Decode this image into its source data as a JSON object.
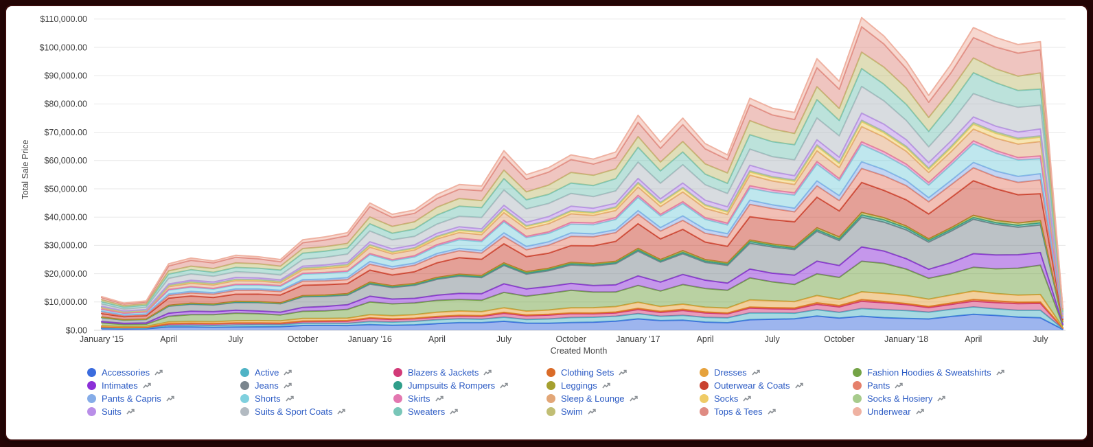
{
  "window": {
    "frame_color": "#250606",
    "card_color": "#ffffff"
  },
  "chart": {
    "y_axis_title": "Total Sale Price",
    "x_axis_title": "Created Month",
    "y_tick_labels": [
      "$0.00",
      "$10,000.00",
      "$20,000.00",
      "$30,000.00",
      "$40,000.00",
      "$50,000.00",
      "$60,000.00",
      "$70,000.00",
      "$80,000.00",
      "$90,000.00",
      "$100,000.00",
      "$110,000.00"
    ],
    "x_ticks": [
      {
        "month": 0,
        "label": "January '15"
      },
      {
        "month": 3,
        "label": "April"
      },
      {
        "month": 6,
        "label": "July"
      },
      {
        "month": 9,
        "label": "October"
      },
      {
        "month": 12,
        "label": "January '16"
      },
      {
        "month": 15,
        "label": "April"
      },
      {
        "month": 18,
        "label": "July"
      },
      {
        "month": 21,
        "label": "October"
      },
      {
        "month": 24,
        "label": "January '17"
      },
      {
        "month": 27,
        "label": "April"
      },
      {
        "month": 30,
        "label": "July"
      },
      {
        "month": 33,
        "label": "October"
      },
      {
        "month": 36,
        "label": "January '18"
      },
      {
        "month": 39,
        "label": "April"
      },
      {
        "month": 42,
        "label": "July"
      }
    ],
    "styles": {
      "grid_color": "#e7e7e7",
      "axis_line_color": "#d5d5d5",
      "tick_text_color": "#3d3d3d",
      "axis_title_color": "#444444",
      "legend_text_color": "#2c5bc4",
      "sparkline_icon_color": "#8a8f94",
      "fill_opacity": 0.5
    }
  },
  "chart_data": {
    "type": "area",
    "stacked": true,
    "title": "",
    "xlabel": "Created Month",
    "ylabel": "Total Sale Price",
    "ylim": [
      0,
      110000
    ],
    "grid": true,
    "legend_position": "bottom",
    "x": [
      "2015-01",
      "2015-02",
      "2015-03",
      "2015-04",
      "2015-05",
      "2015-06",
      "2015-07",
      "2015-08",
      "2015-09",
      "2015-10",
      "2015-11",
      "2015-12",
      "2016-01",
      "2016-02",
      "2016-03",
      "2016-04",
      "2016-05",
      "2016-06",
      "2016-07",
      "2016-08",
      "2016-09",
      "2016-10",
      "2016-11",
      "2016-12",
      "2017-01",
      "2017-02",
      "2017-03",
      "2017-04",
      "2017-05",
      "2017-06",
      "2017-07",
      "2017-08",
      "2017-09",
      "2017-10",
      "2017-11",
      "2017-12",
      "2018-01",
      "2018-02",
      "2018-03",
      "2018-04",
      "2018-05",
      "2018-06",
      "2018-07",
      "2018-08"
    ],
    "totals": [
      11900,
      9600,
      10400,
      23500,
      25500,
      24500,
      26500,
      26000,
      25000,
      32000,
      33000,
      34500,
      45000,
      41000,
      42500,
      48000,
      51500,
      51000,
      63500,
      55000,
      57500,
      62000,
      60500,
      63000,
      76000,
      66500,
      75000,
      66000,
      62000,
      82000,
      78500,
      77000,
      96000,
      88000,
      110500,
      104000,
      95000,
      83000,
      94000,
      107000,
      103500,
      101000,
      102000,
      8000
    ],
    "series_value_rule": "estimated: value[series][month] = share_pct/100 * totals[month]",
    "series": [
      {
        "name": "Accessories",
        "color": "#3B6CDE",
        "share_pct": 4.8
      },
      {
        "name": "Active",
        "color": "#4FB3C5",
        "share_pct": 2.6
      },
      {
        "name": "Blazers & Jackets",
        "color": "#D23A78",
        "share_pct": 2.1
      },
      {
        "name": "Clothing Sets",
        "color": "#DA6B28",
        "share_pct": 0.5
      },
      {
        "name": "Dresses",
        "color": "#E6A23C",
        "share_pct": 2.8
      },
      {
        "name": "Fashion Hoodies & Sweatshirts",
        "color": "#74A346",
        "share_pct": 9.0
      },
      {
        "name": "Intimates",
        "color": "#8C30D8",
        "share_pct": 4.3
      },
      {
        "name": "Jeans",
        "color": "#7A858D",
        "share_pct": 10.7
      },
      {
        "name": "Jumpsuits & Rompers",
        "color": "#2F9E8A",
        "share_pct": 0.7
      },
      {
        "name": "Leggings",
        "color": "#A5A02F",
        "share_pct": 0.7
      },
      {
        "name": "Outerwear & Coats",
        "color": "#C94230",
        "share_pct": 10.4
      },
      {
        "name": "Pants",
        "color": "#E5806B",
        "share_pct": 4.7
      },
      {
        "name": "Pants & Capris",
        "color": "#85ACE8",
        "share_pct": 1.9
      },
      {
        "name": "Shorts",
        "color": "#7FD0DE",
        "share_pct": 5.6
      },
      {
        "name": "Skirts",
        "color": "#E377B0",
        "share_pct": 1.0
      },
      {
        "name": "Sleep & Lounge",
        "color": "#E2A677",
        "share_pct": 4.4
      },
      {
        "name": "Socks",
        "color": "#EFCB66",
        "share_pct": 1.5
      },
      {
        "name": "Socks & Hosiery",
        "color": "#A7CB8C",
        "share_pct": 0.5
      },
      {
        "name": "Suits",
        "color": "#B98EE8",
        "share_pct": 2.2
      },
      {
        "name": "Suits & Sport Coats",
        "color": "#B2BAC1",
        "share_pct": 7.7
      },
      {
        "name": "Sweaters",
        "color": "#79C6B8",
        "share_pct": 6.3
      },
      {
        "name": "Swim",
        "color": "#C1BE74",
        "share_pct": 5.4
      },
      {
        "name": "Tops & Tees",
        "color": "#DF8B82",
        "share_pct": 7.2
      },
      {
        "name": "Underwear",
        "color": "#EFB2A2",
        "share_pct": 3.0
      }
    ]
  }
}
